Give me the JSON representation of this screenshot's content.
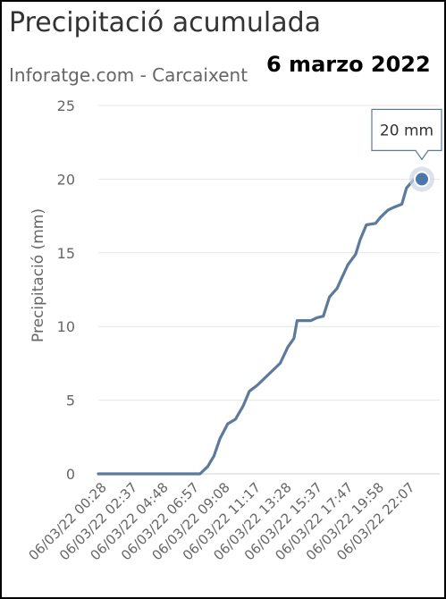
{
  "header": {
    "title": "Precipitació acumulada",
    "subtitle": "Inforatge.com - Carcaixent",
    "date_label": "6 marzo 2022"
  },
  "tooltip": {
    "text": "20 mm"
  },
  "colors": {
    "line": "#5b7a9c",
    "marker": "#4a76aa",
    "grid": "#e6e6e6",
    "axis_text": "#666666"
  },
  "chart_data": {
    "type": "line",
    "ylabel": "Precipitació (mm)",
    "xlabel": "",
    "ylim": [
      0,
      25
    ],
    "yticks": [
      0,
      5,
      10,
      15,
      20,
      25
    ],
    "grid": true,
    "categories": [
      "06/03/22 00:28",
      "06/03/22 02:37",
      "06/03/22 04:48",
      "06/03/22 06:57",
      "06/03/22 09:08",
      "06/03/22 11:17",
      "06/03/22 13:28",
      "06/03/22 15:37",
      "06/03/22 17:47",
      "06/03/22 19:58",
      "06/03/22 22:07"
    ],
    "series": [
      {
        "points": [
          [
            0.0,
            0.0
          ],
          [
            3.3,
            0.0
          ],
          [
            3.55,
            0.5
          ],
          [
            3.75,
            1.2
          ],
          [
            3.95,
            2.4
          ],
          [
            4.2,
            3.4
          ],
          [
            4.45,
            3.7
          ],
          [
            4.7,
            4.6
          ],
          [
            4.9,
            5.6
          ],
          [
            5.15,
            6.0
          ],
          [
            5.4,
            6.5
          ],
          [
            5.65,
            7.0
          ],
          [
            5.9,
            7.5
          ],
          [
            6.15,
            8.6
          ],
          [
            6.35,
            9.2
          ],
          [
            6.45,
            10.4
          ],
          [
            6.9,
            10.4
          ],
          [
            7.1,
            10.6
          ],
          [
            7.3,
            10.7
          ],
          [
            7.5,
            12.0
          ],
          [
            7.75,
            12.6
          ],
          [
            7.9,
            13.3
          ],
          [
            8.1,
            14.2
          ],
          [
            8.35,
            14.9
          ],
          [
            8.5,
            15.9
          ],
          [
            8.7,
            16.9
          ],
          [
            9.0,
            17.0
          ],
          [
            9.15,
            17.4
          ],
          [
            9.4,
            17.9
          ],
          [
            9.6,
            18.1
          ],
          [
            9.85,
            18.3
          ],
          [
            10.0,
            19.4
          ],
          [
            10.25,
            20.0
          ],
          [
            10.5,
            20.0
          ]
        ],
        "highlight": {
          "x": 10.5,
          "y": 20
        }
      }
    ]
  }
}
